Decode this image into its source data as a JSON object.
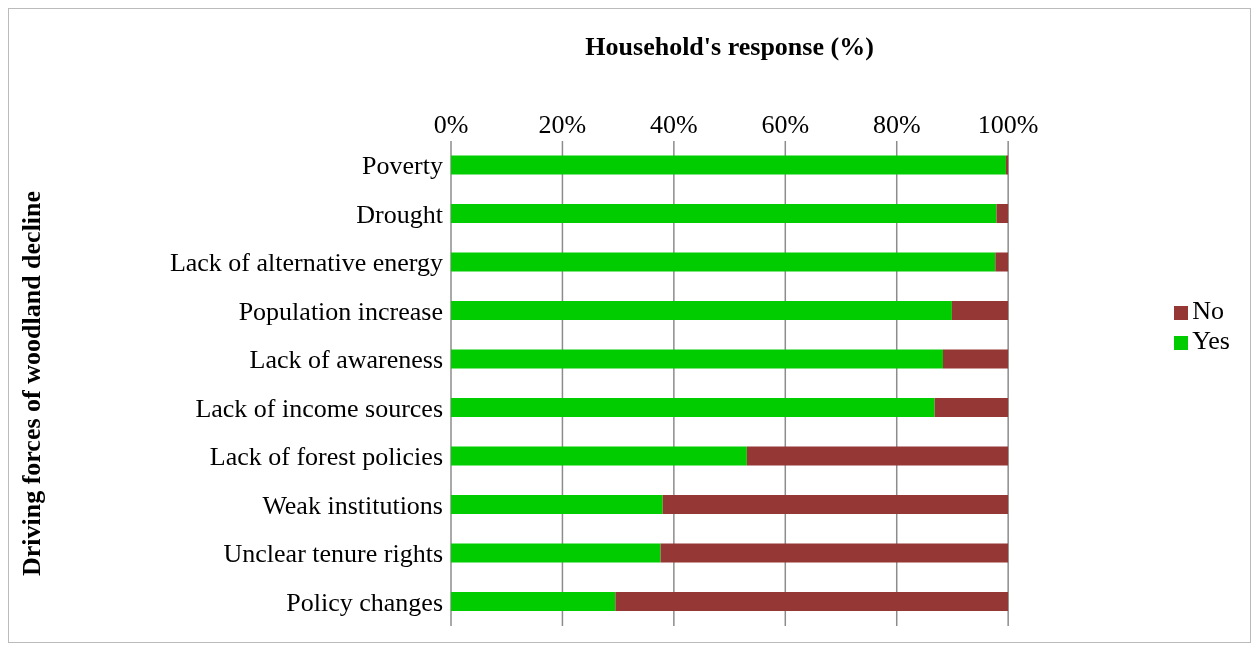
{
  "chart_data": {
    "type": "bar",
    "orientation": "horizontal",
    "stacked": true,
    "xlabel": "Household's response (%)",
    "ylabel": "Driving forces of woodland decline",
    "categories": [
      "Poverty",
      "Drought ",
      "Lack of alternative energy",
      "Population increase",
      "Lack of awareness ",
      "Lack of income sources",
      "Lack of forest policies",
      "Weak institutions",
      "Unclear tenure rights ",
      "Policy changes"
    ],
    "series": [
      {
        "name": "Yes",
        "color": "#00cc00",
        "values": [
          99.6,
          97.9,
          97.7,
          89.9,
          88.3,
          86.8,
          53.1,
          38.0,
          37.6,
          29.5
        ]
      },
      {
        "name": "No",
        "color": "#953735",
        "values": [
          0.4,
          2.1,
          2.3,
          10.1,
          11.7,
          13.2,
          46.9,
          62.0,
          62.4,
          70.5
        ]
      }
    ],
    "xlim": [
      0,
      100
    ],
    "xticks": [
      {
        "value": 0,
        "label": "0%"
      },
      {
        "value": 20,
        "label": "20%"
      },
      {
        "value": 40,
        "label": "40%"
      },
      {
        "value": 60,
        "label": "60%"
      },
      {
        "value": 80,
        "label": "80%"
      },
      {
        "value": 100,
        "label": "100%"
      }
    ],
    "grid": "x",
    "legend": "right"
  }
}
